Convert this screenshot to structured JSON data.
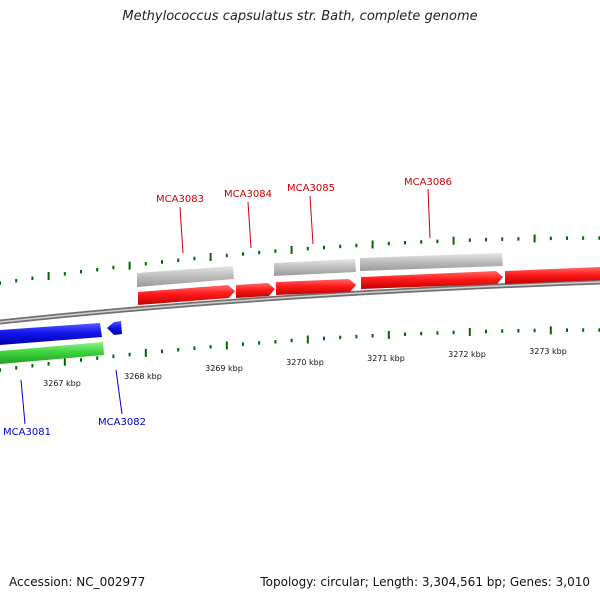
{
  "title": "Methylococcus capsulatus str. Bath, complete genome",
  "footer": {
    "accession": "Accession: NC_002977",
    "summary": "Topology: circular; Length: 3,304,561 bp; Genes: 3,010"
  },
  "colors": {
    "forward_cds": "#ff0000",
    "forward_gene": "#c0c0c0",
    "reverse_cds": "#0000ee",
    "reverse_gene": "#33cc33",
    "backbone": "#808080",
    "ticks": "#006600",
    "forward_label": "#cc0000",
    "reverse_label": "#0000cc"
  },
  "scale_labels": [
    "3267 kbp",
    "3268 kbp",
    "3269 kbp",
    "3270 kbp",
    "3271 kbp",
    "3272 kbp",
    "3273 kbp"
  ],
  "genes_forward": [
    {
      "id": "MCA3083"
    },
    {
      "id": "MCA3084"
    },
    {
      "id": "MCA3085"
    },
    {
      "id": "MCA3086"
    }
  ],
  "genes_reverse": [
    {
      "id": "MCA3081"
    },
    {
      "id": "MCA3082"
    }
  ]
}
